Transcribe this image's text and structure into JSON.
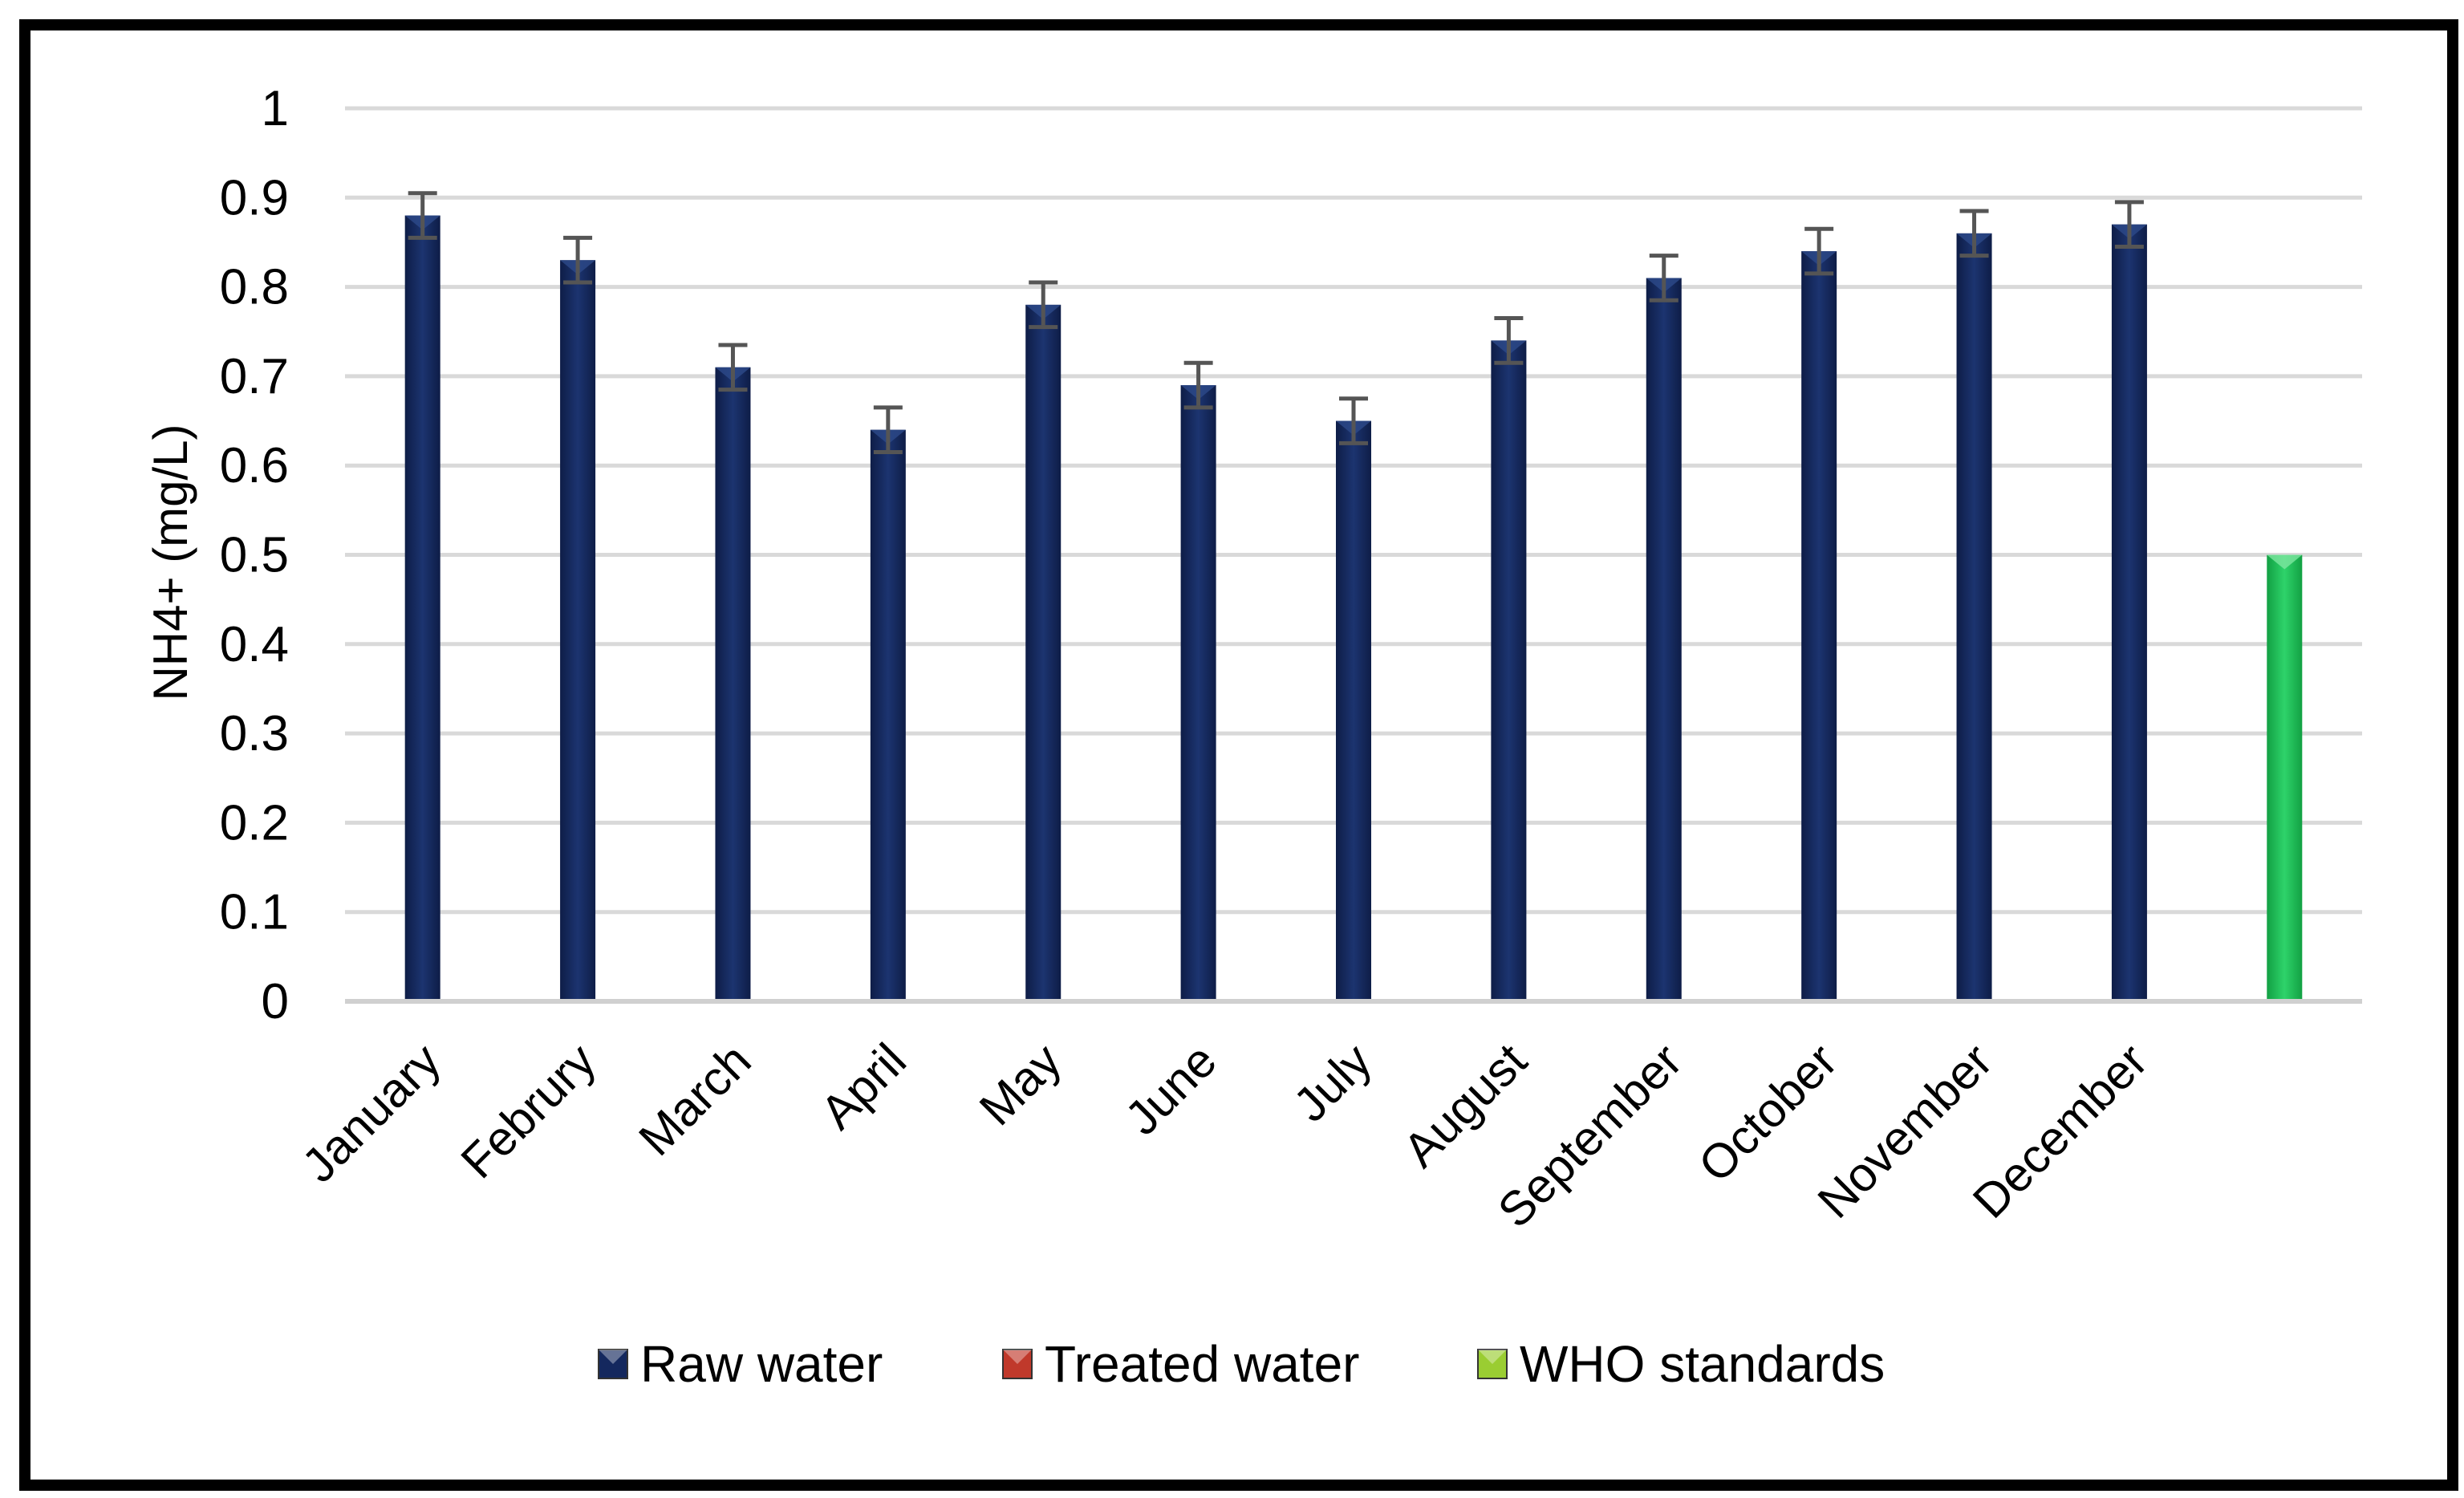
{
  "chart_data": {
    "type": "bar",
    "title": "",
    "xlabel": "",
    "ylabel": "NH4+ (mg/L)",
    "ylim": [
      0,
      1
    ],
    "yticks": [
      "0",
      "0.1",
      "0.2",
      "0.3",
      "0.4",
      "0.5",
      "0.6",
      "0.7",
      "0.8",
      "0.9",
      "1"
    ],
    "grid": true,
    "legend_position": "bottom",
    "categories": [
      "January",
      "Februry",
      "March",
      "April",
      "May",
      "June",
      "July",
      "August",
      "September",
      "October",
      "November",
      "December",
      ""
    ],
    "series": [
      {
        "name": "Raw water",
        "color": "#14285e",
        "values": [
          0.88,
          0.83,
          0.71,
          0.64,
          0.78,
          0.69,
          0.65,
          0.74,
          0.81,
          0.84,
          0.86,
          0.87,
          null
        ],
        "errors": [
          0.025,
          0.025,
          0.025,
          0.025,
          0.025,
          0.025,
          0.025,
          0.025,
          0.025,
          0.025,
          0.025,
          0.025,
          null
        ]
      },
      {
        "name": "Treated water",
        "color": "#c0392b",
        "values": [
          null,
          null,
          null,
          null,
          null,
          null,
          null,
          null,
          null,
          null,
          null,
          null,
          null
        ]
      },
      {
        "name": "WHO standards",
        "color": "#1db954",
        "legend_color": "#9acd32",
        "values": [
          null,
          null,
          null,
          null,
          null,
          null,
          null,
          null,
          null,
          null,
          null,
          null,
          0.5
        ]
      }
    ]
  }
}
